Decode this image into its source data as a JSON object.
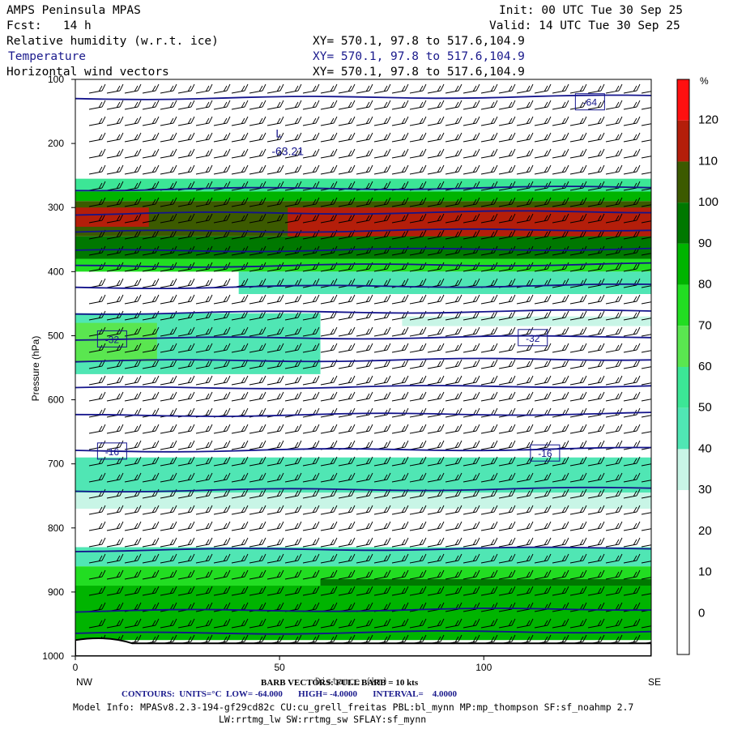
{
  "header": {
    "model": "AMPS Peninsula MPAS",
    "fcst": "Fcst:   14 h",
    "init": "Init: 00 UTC Tue 30 Sep 25",
    "valid": "Valid: 14 UTC Tue 30 Sep 25"
  },
  "fields": [
    {
      "name": "Relative humidity (w.r.t. ice)",
      "xy": "XY= 570.1, 97.8 to 517.6,104.9"
    },
    {
      "name": "Temperature",
      "xy": "XY= 570.1, 97.8 to 517.6,104.9"
    },
    {
      "name": "Horizontal wind vectors",
      "xy": "XY= 570.1, 97.8 to 517.6,104.9"
    }
  ],
  "chart_data": {
    "type": "heatmap",
    "ylabel": "Pressure (hPa)",
    "xlabel": "Distance (km)",
    "x_ticks": [
      "0",
      "50",
      "100"
    ],
    "y_ticks": [
      "100",
      "200",
      "300",
      "400",
      "500",
      "600",
      "700",
      "800",
      "900",
      "1000"
    ],
    "xlim": [
      0,
      141
    ],
    "ylim": [
      100,
      1000
    ],
    "endpoints": {
      "left": "NW",
      "right": "SE"
    },
    "colorbar": {
      "unit": "%",
      "labels": [
        "120",
        "110",
        "100",
        "90",
        "80",
        "70",
        "60",
        "50",
        "40",
        "30",
        "20",
        "10",
        "0"
      ],
      "levels": [
        -10,
        0,
        10,
        20,
        30,
        40,
        50,
        60,
        70,
        80,
        90,
        100,
        110,
        120,
        130
      ],
      "colors": [
        "#ffffff",
        "#ffffff",
        "#ffffff",
        "#ffffff",
        "#c8f5e6",
        "#50e6b4",
        "#3ce696",
        "#5ae650",
        "#22dd22",
        "#00b400",
        "#007800",
        "#3c5a00",
        "#b41e0a",
        "#ff1010"
      ]
    },
    "rh_bands": [
      {
        "p_top": 255,
        "p_bot": 275,
        "rh": 55
      },
      {
        "p_top": 275,
        "p_bot": 290,
        "rh": 85
      },
      {
        "p_top": 290,
        "p_bot": 345,
        "rh": 100
      },
      {
        "p_top": 300,
        "p_bot": 360,
        "x0": 52,
        "x1": 141,
        "rh": 115
      },
      {
        "p_top": 300,
        "p_bot": 330,
        "x0": 0,
        "x1": 18,
        "rh": 112
      },
      {
        "p_top": 345,
        "p_bot": 380,
        "rh": 90
      },
      {
        "p_top": 380,
        "p_bot": 400,
        "rh": 70
      },
      {
        "p_top": 400,
        "p_bot": 435,
        "x0": 40,
        "x1": 141,
        "rh": 45
      },
      {
        "p_top": 465,
        "p_bot": 560,
        "x0": 0,
        "x1": 60,
        "rh": 45
      },
      {
        "p_top": 480,
        "p_bot": 540,
        "x0": 0,
        "x1": 20,
        "rh": 62
      },
      {
        "p_top": 470,
        "p_bot": 485,
        "x0": 80,
        "x1": 141,
        "rh": 35
      },
      {
        "p_top": 690,
        "p_bot": 745,
        "rh": 45
      },
      {
        "p_top": 745,
        "p_bot": 770,
        "rh": 35
      },
      {
        "p_top": 830,
        "p_bot": 860,
        "rh": 45
      },
      {
        "p_top": 860,
        "p_bot": 890,
        "rh": 75
      },
      {
        "p_top": 880,
        "p_bot": 940,
        "x0": 60,
        "x1": 141,
        "rh": 95
      },
      {
        "p_top": 890,
        "p_bot": 975,
        "rh": 85
      }
    ],
    "temperature_contours": [
      {
        "p": 130
      },
      {
        "p": 272
      },
      {
        "p": 310
      },
      {
        "p": 338
      },
      {
        "p": 368
      },
      {
        "p": 392
      },
      {
        "p": 425
      },
      {
        "p": 465
      },
      {
        "p": 505,
        "label": "-32"
      },
      {
        "p": 540
      },
      {
        "p": 582
      },
      {
        "p": 625
      },
      {
        "p": 680,
        "label": "-16"
      },
      {
        "p": 742
      },
      {
        "p": 835
      },
      {
        "p": 930
      },
      {
        "p": 965
      }
    ],
    "contour_labels": [
      {
        "text": "-32",
        "x": 9,
        "p": 505
      },
      {
        "text": "-32",
        "x": 112,
        "p": 503
      },
      {
        "text": "-16",
        "x": 9,
        "p": 680
      },
      {
        "text": "-16",
        "x": 115,
        "p": 683
      },
      {
        "text": "-64",
        "x": 126,
        "p": 135
      }
    ],
    "low_marker": {
      "symbol": "L",
      "value": "-63.21",
      "x": 55,
      "p": 213
    },
    "terrain_p": 975
  },
  "footer": {
    "barb": "BARB VECTORS: FULL BARB = 10 kts",
    "distance_label": "Distance (km)",
    "contours": "CONTOURS:  UNITS=°C  LOW= -64.000       HIGH= -4.0000       INTERVAL=    4.0000",
    "model_info": "Model Info: MPASv8.2.3-194-gf29cd82c CU:cu_grell_freitas PBL:bl_mynn MP:mp_thompson SF:sf_noahmp 2.7",
    "model_info2": "LW:rrtmg_lw SW:rrtmg_sw SFLAY:sf_mynn"
  }
}
